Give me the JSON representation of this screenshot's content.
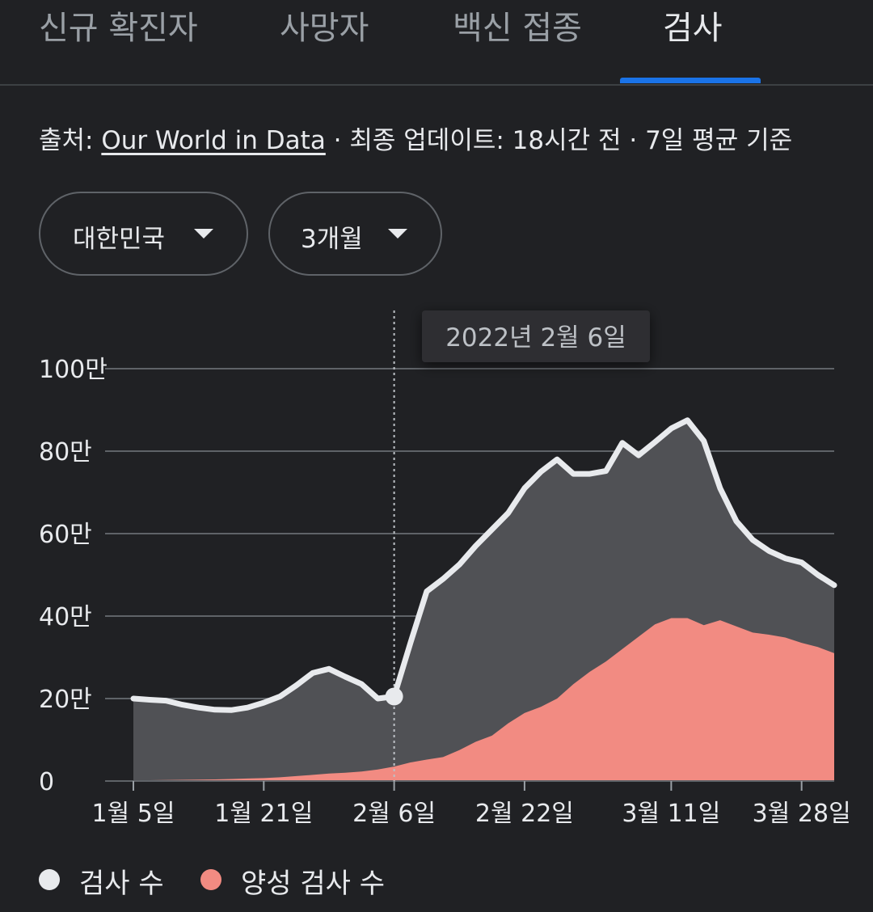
{
  "tabs": [
    {
      "label": "신규 확진자"
    },
    {
      "label": "사망자"
    },
    {
      "label": "백신 접종"
    },
    {
      "label": "검사",
      "active": true
    }
  ],
  "source": {
    "prefix": "출처: ",
    "link": "Our World in Data",
    "suffix": " · 최종 업데이트: 18시간 전 · 7일 평균 기준"
  },
  "filters": {
    "region": "대한민국",
    "period": "3개월"
  },
  "chart_data": {
    "type": "area",
    "tooltip": "2022년 2월 6일",
    "highlight_x": "2월 6일",
    "y_ticks": [
      "0",
      "20만",
      "40만",
      "60만",
      "80만",
      "100만"
    ],
    "y_tick_values": [
      0,
      200000,
      400000,
      600000,
      800000,
      1000000
    ],
    "ylim": [
      0,
      1000000
    ],
    "x_ticks": [
      "1월 5일",
      "1월 21일",
      "2월 6일",
      "2월 22일",
      "3월 11일",
      "3월 28일"
    ],
    "x": [
      "1월 5일",
      "1월 7일",
      "1월 9일",
      "1월 11일",
      "1월 13일",
      "1월 15일",
      "1월 17일",
      "1월 19일",
      "1월 21일",
      "1월 23일",
      "1월 25일",
      "1월 27일",
      "1월 29일",
      "1월 31일",
      "2월 2일",
      "2월 4일",
      "2월 6일",
      "2월 8일",
      "2월 10일",
      "2월 12일",
      "2월 14일",
      "2월 16일",
      "2월 18일",
      "2월 20일",
      "2월 22일",
      "2월 24일",
      "2월 26일",
      "2월 28일",
      "3월 2일",
      "3월 4일",
      "3월 6일",
      "3월 8일",
      "3월 9일",
      "3월 11일",
      "3월 13일",
      "3월 15일",
      "3월 17일",
      "3월 19일",
      "3월 21일",
      "3월 23일",
      "3월 25일",
      "3월 28일",
      "3월 30일",
      "4월 1일"
    ],
    "series": [
      {
        "name": "검사 수",
        "color": "#e8eaed",
        "values": [
          200000,
          197000,
          195000,
          185000,
          178000,
          173000,
          172000,
          178000,
          190000,
          205000,
          232000,
          262000,
          272000,
          253000,
          235000,
          200000,
          205000,
          335000,
          460000,
          490000,
          525000,
          570000,
          610000,
          650000,
          710000,
          750000,
          780000,
          745000,
          745000,
          752000,
          820000,
          790000,
          822000,
          855000,
          875000,
          825000,
          710000,
          630000,
          585000,
          558000,
          540000,
          530000,
          500000,
          475000
        ]
      },
      {
        "name": "양성 검사 수",
        "color": "#f28b82",
        "values": [
          2000,
          2000,
          2500,
          3000,
          3500,
          4000,
          5000,
          6000,
          7000,
          9000,
          12000,
          15000,
          18000,
          20000,
          23000,
          28000,
          35000,
          45000,
          52000,
          58000,
          75000,
          95000,
          110000,
          140000,
          165000,
          180000,
          200000,
          235000,
          265000,
          290000,
          320000,
          350000,
          380000,
          395000,
          395000,
          378000,
          390000,
          375000,
          360000,
          355000,
          348000,
          335000,
          325000,
          310000
        ]
      }
    ]
  }
}
